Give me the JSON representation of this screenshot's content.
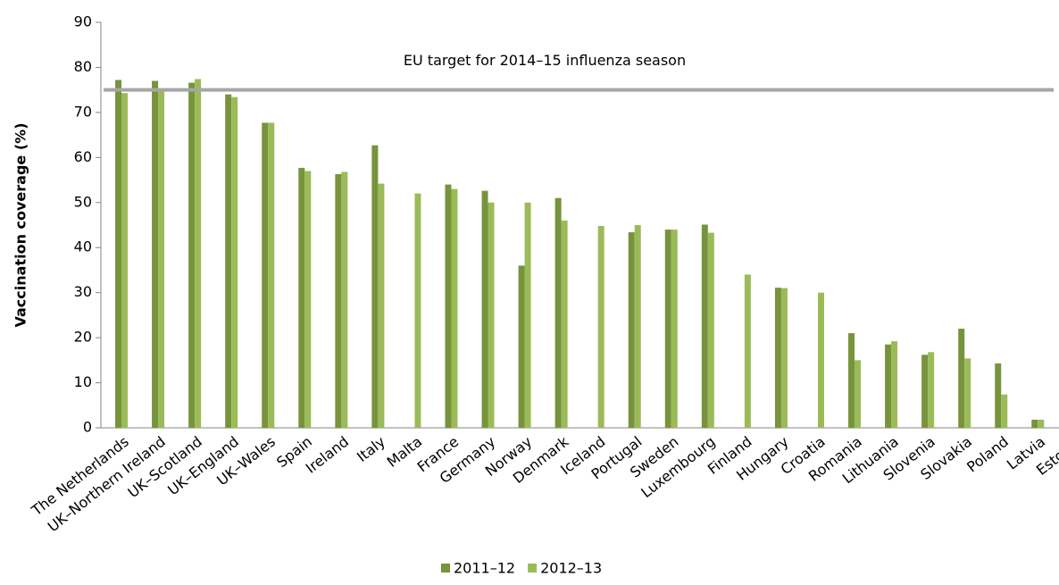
{
  "chart_data": {
    "type": "bar",
    "y_label": "Vaccination coverage (%)",
    "categories": [
      "The Netherlands",
      "UK–Northern Ireland",
      "UK–Scotland",
      "UK–England",
      "UK–Wales",
      "Spain",
      "Ireland",
      "Italy",
      "Malta",
      "France",
      "Germany",
      "Norway",
      "Denmark",
      "Iceland",
      "Portugal",
      "Sweden",
      "Luxembourg",
      "Finland",
      "Hungary",
      "Croatia",
      "Romania",
      "Lithuania",
      "Slovenia",
      "Slovakia",
      "Poland",
      "Latvia",
      "Estonia"
    ],
    "series": [
      {
        "name": "2011–12",
        "color": "#77933c",
        "values": [
          77.2,
          77,
          76.6,
          74,
          67.7,
          57.7,
          56.3,
          62.7,
          null,
          54,
          52.6,
          36,
          51,
          null,
          43.4,
          44,
          45.1,
          null,
          31.1,
          null,
          21,
          18.5,
          16.2,
          22,
          14.3,
          1.8,
          null
        ]
      },
      {
        "name": "2012–13",
        "color": "#9bbb59",
        "values": [
          74.3,
          75,
          77.4,
          73.4,
          67.7,
          57,
          56.8,
          54.2,
          52,
          53,
          50,
          50,
          46,
          44.8,
          45,
          44,
          43.3,
          34,
          31,
          30,
          15,
          19.2,
          16.8,
          15.4,
          7.4,
          1.8,
          1.1
        ]
      }
    ],
    "target": {
      "value": 75,
      "label": "EU target for 2014–15 influenza season",
      "color": "#a6a6a6"
    },
    "ylim": [
      0,
      90
    ],
    "yticks": [
      0,
      10,
      20,
      30,
      40,
      50,
      60,
      70,
      80,
      90
    ],
    "legend": "bottom"
  }
}
